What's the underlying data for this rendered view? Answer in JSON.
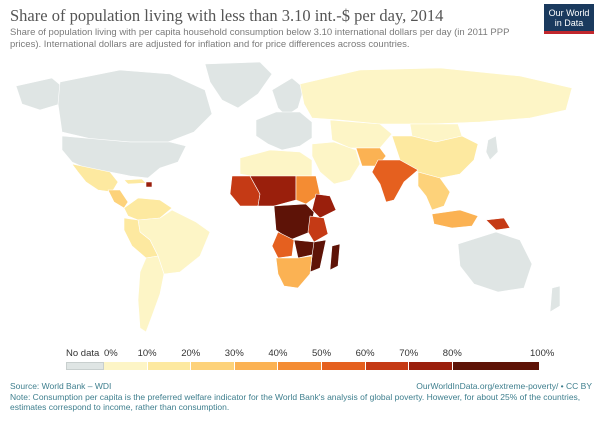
{
  "header": {
    "title": "Share of population living with less than 3.10 int.-$ per day, 2014",
    "subtitle": "Share of population living with per capita household consumption below 3.10 international dollars per day (in 2011 PPP prices). International dollars are adjusted for inflation and for price differences across countries.",
    "logo_line1": "Our World",
    "logo_line2": "in Data"
  },
  "colors": {
    "no_data": "#dfe5e4",
    "ocean": "#ffffff",
    "border": "#ffffff",
    "logo_bg": "#1a3a5e",
    "logo_accent": "#c1272d",
    "footer_text": "#3f7f8e"
  },
  "legend": {
    "no_data_label": "No data",
    "labels": [
      "0%",
      "10%",
      "20%",
      "30%",
      "40%",
      "50%",
      "60%",
      "70%",
      "80%",
      "100%"
    ],
    "bins": [
      {
        "from": 0,
        "to": 10,
        "color": "#fdf5c6"
      },
      {
        "from": 10,
        "to": 20,
        "color": "#fde9a0"
      },
      {
        "from": 20,
        "to": 30,
        "color": "#fdd27a"
      },
      {
        "from": 30,
        "to": 40,
        "color": "#fbb253"
      },
      {
        "from": 40,
        "to": 50,
        "color": "#f48c33"
      },
      {
        "from": 50,
        "to": 60,
        "color": "#e5601f"
      },
      {
        "from": 60,
        "to": 70,
        "color": "#c53a15"
      },
      {
        "from": 70,
        "to": 80,
        "color": "#9a1f0c"
      },
      {
        "from": 80,
        "to": 100,
        "color": "#5e1307"
      }
    ]
  },
  "map": {
    "regions": [
      {
        "id": "greenland",
        "name": "Greenland",
        "value": null
      },
      {
        "id": "canada",
        "name": "Canada",
        "value": null
      },
      {
        "id": "usa",
        "name": "United States",
        "value": null
      },
      {
        "id": "alaska",
        "name": "Alaska",
        "value": null
      },
      {
        "id": "mexico",
        "name": "Mexico",
        "value": 12
      },
      {
        "id": "central-america",
        "name": "Central America",
        "value": 25
      },
      {
        "id": "caribbean",
        "name": "Caribbean",
        "value": 15
      },
      {
        "id": "haiti",
        "name": "Haiti",
        "value": 72
      },
      {
        "id": "colombia-venezuela",
        "name": "Colombia / Venezuela",
        "value": 12
      },
      {
        "id": "brazil",
        "name": "Brazil",
        "value": 8
      },
      {
        "id": "peru-bolivia",
        "name": "Peru / Bolivia",
        "value": 15
      },
      {
        "id": "argentina-chile",
        "name": "Argentina / Chile",
        "value": 3
      },
      {
        "id": "europe",
        "name": "Europe",
        "value": null
      },
      {
        "id": "scandinavia",
        "name": "Scandinavia",
        "value": null
      },
      {
        "id": "russia",
        "name": "Russia",
        "value": 1
      },
      {
        "id": "central-asia",
        "name": "Central Asia",
        "value": 8
      },
      {
        "id": "mongolia",
        "name": "Mongolia",
        "value": 5
      },
      {
        "id": "china",
        "name": "China",
        "value": 12
      },
      {
        "id": "middle-east",
        "name": "Middle East",
        "value": 3
      },
      {
        "id": "afghanistan-pakistan",
        "name": "Afghanistan / Pakistan",
        "value": 35
      },
      {
        "id": "india",
        "name": "India",
        "value": 58
      },
      {
        "id": "southeast-asia",
        "name": "Southeast Asia",
        "value": 22
      },
      {
        "id": "indonesia",
        "name": "Indonesia",
        "value": 32
      },
      {
        "id": "papua-new-guinea",
        "name": "Papua New Guinea",
        "value": 65
      },
      {
        "id": "australia",
        "name": "Australia",
        "value": null
      },
      {
        "id": "new-zealand",
        "name": "New Zealand",
        "value": null
      },
      {
        "id": "japan",
        "name": "Japan",
        "value": null
      },
      {
        "id": "north-africa",
        "name": "North Africa",
        "value": 5
      },
      {
        "id": "west-africa",
        "name": "West Africa",
        "value": 65
      },
      {
        "id": "sahel",
        "name": "Sahel",
        "value": 75
      },
      {
        "id": "sudan",
        "name": "Sudan",
        "value": 45
      },
      {
        "id": "ethiopia",
        "name": "Ethiopia",
        "value": 72
      },
      {
        "id": "east-africa",
        "name": "East Africa",
        "value": 62
      },
      {
        "id": "central-africa",
        "name": "Central Africa",
        "value": 92
      },
      {
        "id": "angola",
        "name": "Angola",
        "value": 55
      },
      {
        "id": "zambia-malawi",
        "name": "Zambia / Malawi",
        "value": 85
      },
      {
        "id": "mozambique",
        "name": "Mozambique",
        "value": 82
      },
      {
        "id": "southern-africa",
        "name": "Southern Africa",
        "value": 35
      },
      {
        "id": "madagascar",
        "name": "Madagascar",
        "value": 90
      }
    ]
  },
  "footer": {
    "source": "Source: World Bank – WDI",
    "url": "OurWorldInData.org/extreme-poverty/ • CC BY",
    "note": "Note: Consumption per capita is the preferred welfare indicator for the World Bank's analysis of global poverty. However, for about 25% of the countries, estimates correspond to income, rather than consumption."
  }
}
